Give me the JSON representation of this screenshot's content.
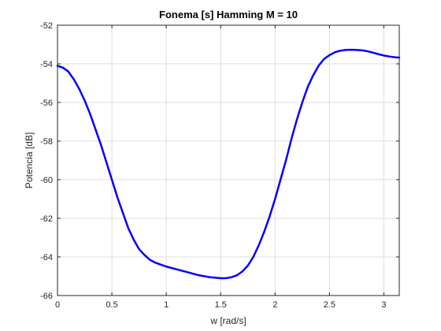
{
  "chart_data": {
    "type": "line",
    "title": "Fonema [s] Hamming M = 10",
    "xlabel": "w [rad/s]",
    "ylabel": "Potencia [dB]",
    "xlim": [
      0,
      3.1416
    ],
    "ylim": [
      -66,
      -52
    ],
    "xticks": [
      0,
      0.5,
      1,
      1.5,
      2,
      2.5,
      3
    ],
    "xtick_labels": [
      "0",
      "0.5",
      "1",
      "1.5",
      "2",
      "2.5",
      "3"
    ],
    "yticks": [
      -66,
      -64,
      -62,
      -60,
      -58,
      -56,
      -54,
      -52
    ],
    "ytick_labels": [
      "-66",
      "-64",
      "-62",
      "-60",
      "-58",
      "-56",
      "-54",
      "-52"
    ],
    "grid": true,
    "box": true,
    "series": [
      {
        "color": "#0000ff",
        "x": [
          0,
          0.05,
          0.1,
          0.15,
          0.2,
          0.25,
          0.3,
          0.35,
          0.4,
          0.45,
          0.5,
          0.55,
          0.6,
          0.65,
          0.7,
          0.75,
          0.8,
          0.85,
          0.9,
          0.95,
          1.0,
          1.1,
          1.2,
          1.3,
          1.4,
          1.5,
          1.55,
          1.6,
          1.65,
          1.7,
          1.75,
          1.8,
          1.85,
          1.9,
          1.95,
          2.0,
          2.05,
          2.1,
          2.15,
          2.2,
          2.25,
          2.3,
          2.35,
          2.4,
          2.45,
          2.5,
          2.55,
          2.6,
          2.65,
          2.7,
          2.75,
          2.8,
          2.85,
          2.9,
          2.95,
          3.0,
          3.05,
          3.1,
          3.1416
        ],
        "y": [
          -54.1,
          -54.2,
          -54.4,
          -54.8,
          -55.3,
          -55.9,
          -56.6,
          -57.4,
          -58.2,
          -59.1,
          -60.0,
          -60.9,
          -61.7,
          -62.5,
          -63.1,
          -63.6,
          -63.9,
          -64.15,
          -64.3,
          -64.4,
          -64.5,
          -64.65,
          -64.8,
          -64.95,
          -65.05,
          -65.1,
          -65.1,
          -65.05,
          -64.95,
          -64.75,
          -64.45,
          -64.0,
          -63.4,
          -62.7,
          -61.9,
          -61.0,
          -60.0,
          -59.0,
          -57.9,
          -56.9,
          -56.0,
          -55.2,
          -54.6,
          -54.1,
          -53.75,
          -53.55,
          -53.4,
          -53.32,
          -53.28,
          -53.27,
          -53.28,
          -53.3,
          -53.35,
          -53.42,
          -53.5,
          -53.57,
          -53.62,
          -53.66,
          -53.68
        ]
      }
    ]
  }
}
